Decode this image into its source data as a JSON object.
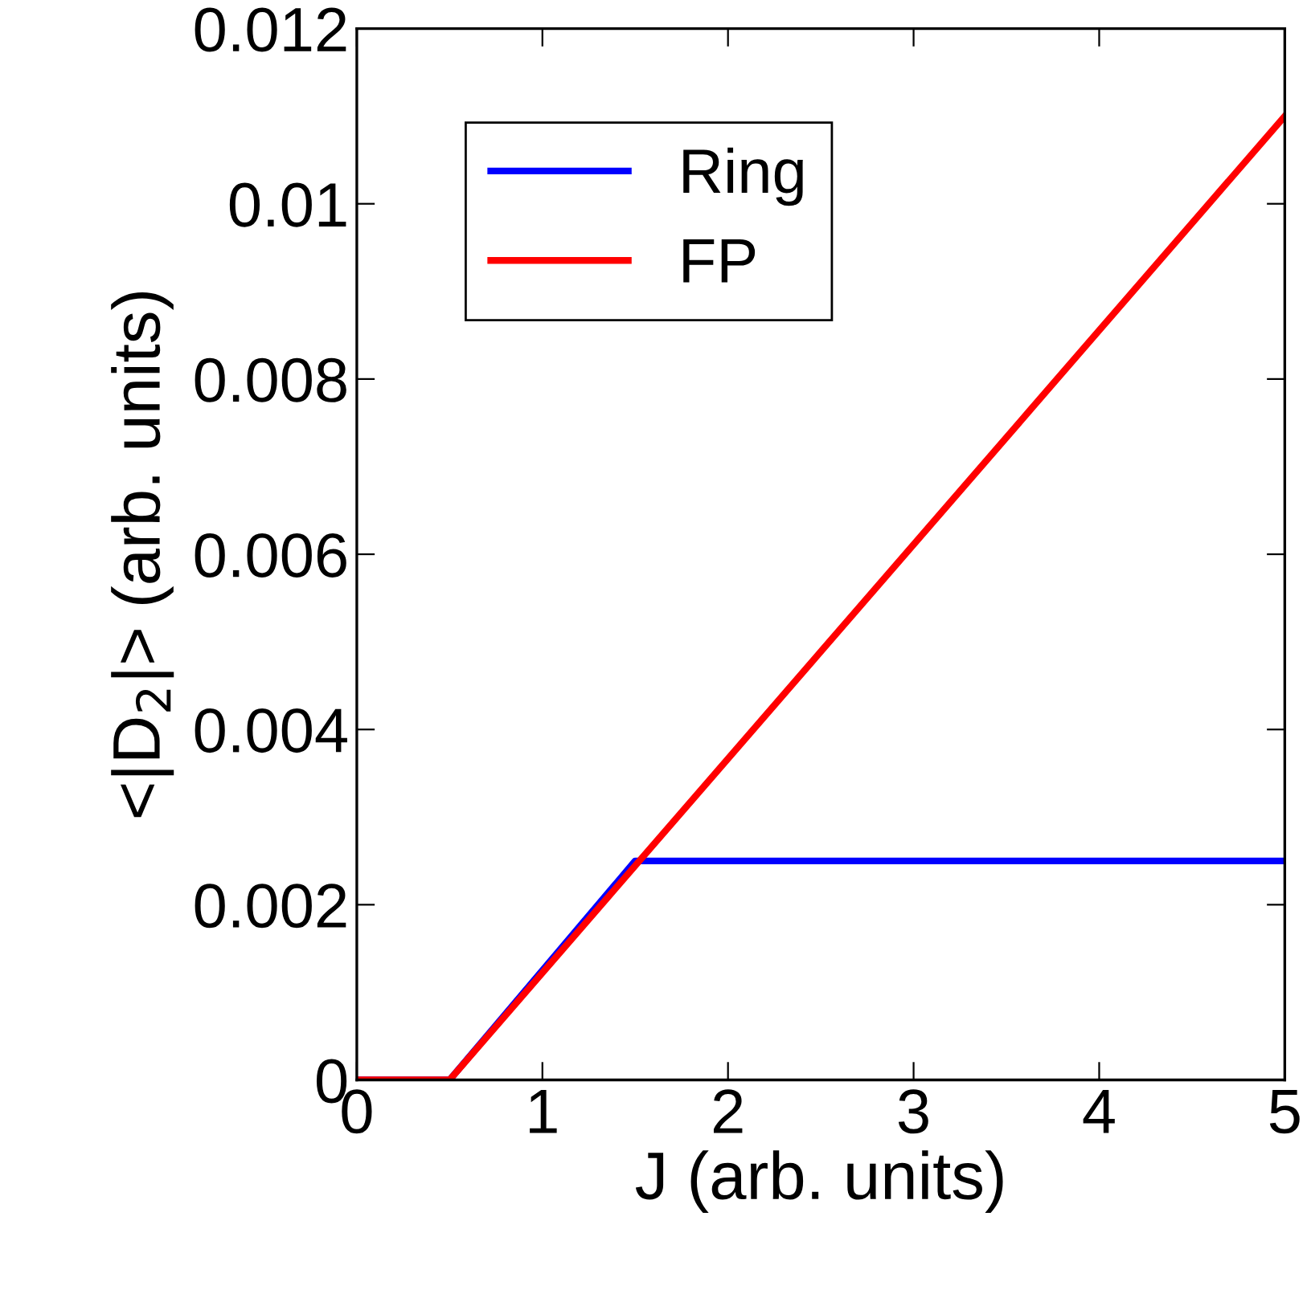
{
  "chart_data": {
    "type": "line",
    "xlabel": "J (arb. units)",
    "ylabel": "<|D$_{2}$|> (arb. units)",
    "series": [
      {
        "name": "Ring",
        "color": "#0000ff",
        "x": [
          0,
          0.5,
          1.5,
          5
        ],
        "values": [
          0,
          0,
          0.0025,
          0.0025
        ]
      },
      {
        "name": "FP",
        "color": "#ff0000",
        "x": [
          0,
          0.5,
          5
        ],
        "values": [
          0,
          0,
          0.011
        ]
      }
    ],
    "xlim": [
      0,
      5
    ],
    "ylim": [
      0,
      0.012
    ],
    "xticks": [
      0,
      1,
      2,
      3,
      4,
      5
    ],
    "yticks": [
      0,
      0.002,
      0.004,
      0.006,
      0.008,
      0.01,
      0.012
    ],
    "grid": false,
    "legend": "top left",
    "marker": "none",
    "line_style": "solid"
  }
}
